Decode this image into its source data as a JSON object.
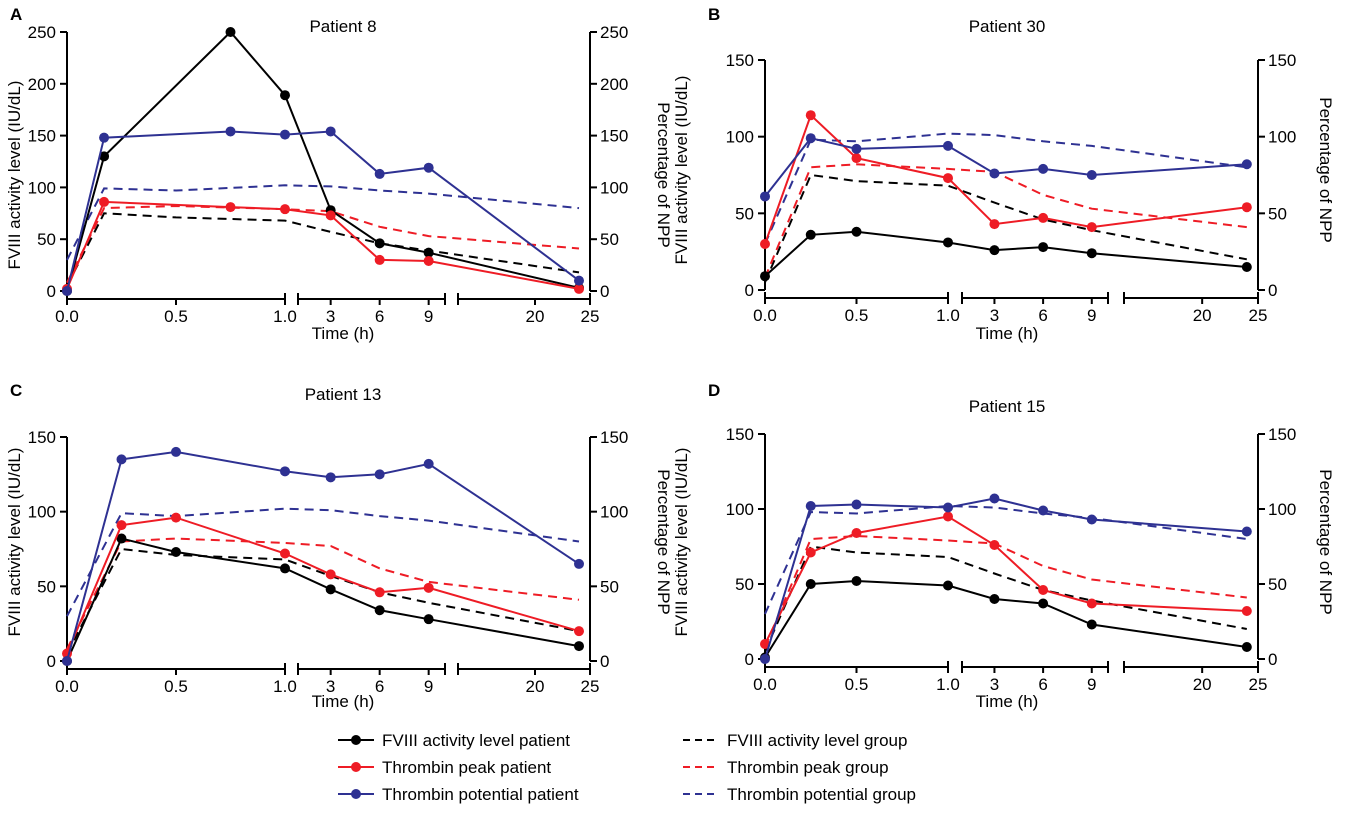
{
  "colors": {
    "fviii": "#000000",
    "peak": "#ee1c25",
    "potential": "#2e3192"
  },
  "chart_data": [
    {
      "type": "line",
      "panel": "A",
      "title": "Patient 8",
      "xlabel": "Time (h)",
      "ylabel_left": "FVIII activity level (IU/dL)",
      "ylabel_right": "Percentage of NPP",
      "ylim": [
        0,
        250
      ],
      "yticks": [
        0,
        50,
        100,
        150,
        200,
        250
      ],
      "x_segments": [
        {
          "domain": [
            0,
            1
          ],
          "ticks": [
            0,
            0.5,
            1
          ],
          "tick_labels": [
            "0.0",
            "0.5",
            "1.0"
          ]
        },
        {
          "domain": [
            1,
            10
          ],
          "ticks": [
            3,
            6,
            9
          ],
          "tick_labels": [
            "3",
            "6",
            "9"
          ]
        },
        {
          "domain": [
            13,
            25
          ],
          "ticks": [
            20,
            25
          ],
          "tick_labels": [
            "20",
            "25"
          ]
        }
      ],
      "series": [
        {
          "name": "FVIII activity level patient",
          "key": "fviii",
          "dash": false,
          "x": [
            0,
            0.17,
            0.75,
            1,
            3,
            6,
            9,
            24
          ],
          "y": [
            0,
            130,
            250,
            189,
            78,
            46,
            37,
            3
          ]
        },
        {
          "name": "Thrombin peak patient",
          "key": "peak",
          "dash": false,
          "x": [
            0,
            0.17,
            0.75,
            1,
            3,
            6,
            9,
            24
          ],
          "y": [
            2,
            86,
            81,
            79,
            73,
            30,
            29,
            2
          ]
        },
        {
          "name": "Thrombin potential patient",
          "key": "potential",
          "dash": false,
          "x": [
            0,
            0.17,
            0.75,
            1,
            3,
            6,
            9,
            24
          ],
          "y": [
            0,
            148,
            154,
            151,
            154,
            113,
            119,
            10
          ]
        },
        {
          "name": "FVIII activity level group",
          "key": "fviii",
          "dash": true,
          "x": [
            0,
            0.17,
            0.5,
            1,
            3,
            6,
            9,
            24
          ],
          "y": [
            5,
            75,
            71,
            68,
            57,
            46,
            39,
            18
          ]
        },
        {
          "name": "Thrombin peak group",
          "key": "peak",
          "dash": true,
          "x": [
            0,
            0.17,
            0.5,
            1,
            3,
            6,
            9,
            24
          ],
          "y": [
            8,
            80,
            82,
            79,
            77,
            62,
            53,
            41
          ]
        },
        {
          "name": "Thrombin potential group",
          "key": "potential",
          "dash": true,
          "x": [
            0,
            0.17,
            0.5,
            1,
            3,
            6,
            9,
            24
          ],
          "y": [
            30,
            99,
            97,
            102,
            101,
            97,
            94,
            80
          ]
        }
      ]
    },
    {
      "type": "line",
      "panel": "B",
      "title": "Patient 30",
      "xlabel": "Time (h)",
      "ylabel_left": "FVIII activity level (IU/dL)",
      "ylabel_right": "Percentage of NPP",
      "ylim": [
        0,
        150
      ],
      "yticks": [
        0,
        50,
        100,
        150
      ],
      "x_segments": [
        {
          "domain": [
            0,
            1
          ],
          "ticks": [
            0,
            0.5,
            1
          ],
          "tick_labels": [
            "0.0",
            "0.5",
            "1.0"
          ]
        },
        {
          "domain": [
            1,
            10
          ],
          "ticks": [
            3,
            6,
            9
          ],
          "tick_labels": [
            "3",
            "6",
            "9"
          ]
        },
        {
          "domain": [
            13,
            25
          ],
          "ticks": [
            20,
            25
          ],
          "tick_labels": [
            "20",
            "25"
          ]
        }
      ],
      "series": [
        {
          "name": "FVIII activity level patient",
          "key": "fviii",
          "dash": false,
          "x": [
            0,
            0.25,
            0.5,
            1,
            3,
            6,
            9,
            24
          ],
          "y": [
            9,
            36,
            38,
            31,
            26,
            28,
            24,
            15
          ]
        },
        {
          "name": "Thrombin peak patient",
          "key": "peak",
          "dash": false,
          "x": [
            0,
            0.25,
            0.5,
            1,
            3,
            6,
            9,
            24
          ],
          "y": [
            30,
            114,
            86,
            73,
            43,
            47,
            41,
            54
          ]
        },
        {
          "name": "Thrombin potential patient",
          "key": "potential",
          "dash": false,
          "x": [
            0,
            0.25,
            0.5,
            1,
            3,
            6,
            9,
            24
          ],
          "y": [
            61,
            99,
            92,
            94,
            76,
            79,
            75,
            82
          ]
        },
        {
          "name": "FVIII activity level group",
          "key": "fviii",
          "dash": true,
          "x": [
            0,
            0.25,
            0.5,
            1,
            3,
            6,
            9,
            24
          ],
          "y": [
            5,
            75,
            71,
            68,
            57,
            46,
            39,
            20
          ]
        },
        {
          "name": "Thrombin peak group",
          "key": "peak",
          "dash": true,
          "x": [
            0,
            0.25,
            0.5,
            1,
            3,
            6,
            9,
            24
          ],
          "y": [
            8,
            80,
            82,
            79,
            77,
            62,
            53,
            41
          ]
        },
        {
          "name": "Thrombin potential group",
          "key": "potential",
          "dash": true,
          "x": [
            0,
            0.25,
            0.5,
            1,
            3,
            6,
            9,
            24
          ],
          "y": [
            30,
            98,
            97,
            102,
            101,
            97,
            94,
            80
          ]
        }
      ]
    },
    {
      "type": "line",
      "panel": "C",
      "title": "Patient 13",
      "xlabel": "Time (h)",
      "ylabel_left": "FVIII activity level (IU/dL)",
      "ylabel_right": "Percentage of NPP",
      "ylim": [
        0,
        150
      ],
      "yticks": [
        0,
        50,
        100,
        150
      ],
      "x_segments": [
        {
          "domain": [
            0,
            1
          ],
          "ticks": [
            0,
            0.5,
            1
          ],
          "tick_labels": [
            "0.0",
            "0.5",
            "1.0"
          ]
        },
        {
          "domain": [
            1,
            10
          ],
          "ticks": [
            3,
            6,
            9
          ],
          "tick_labels": [
            "3",
            "6",
            "9"
          ]
        },
        {
          "domain": [
            13,
            25
          ],
          "ticks": [
            20,
            25
          ],
          "tick_labels": [
            "20",
            "25"
          ]
        }
      ],
      "series": [
        {
          "name": "FVIII activity level patient",
          "key": "fviii",
          "dash": false,
          "x": [
            0,
            0.25,
            0.5,
            1,
            3,
            6,
            9,
            24
          ],
          "y": [
            0,
            82,
            73,
            62,
            48,
            34,
            28,
            10
          ]
        },
        {
          "name": "Thrombin peak patient",
          "key": "peak",
          "dash": false,
          "x": [
            0,
            0.25,
            0.5,
            1,
            3,
            6,
            9,
            24
          ],
          "y": [
            5,
            91,
            96,
            72,
            58,
            46,
            49,
            20
          ]
        },
        {
          "name": "Thrombin potential patient",
          "key": "potential",
          "dash": false,
          "x": [
            0,
            0.25,
            0.5,
            1,
            3,
            6,
            9,
            24
          ],
          "y": [
            0,
            135,
            140,
            127,
            123,
            125,
            132,
            65
          ]
        },
        {
          "name": "FVIII activity level group",
          "key": "fviii",
          "dash": true,
          "x": [
            0,
            0.25,
            0.5,
            1,
            3,
            6,
            9,
            24
          ],
          "y": [
            5,
            75,
            71,
            68,
            57,
            46,
            39,
            20
          ]
        },
        {
          "name": "Thrombin peak group",
          "key": "peak",
          "dash": true,
          "x": [
            0,
            0.25,
            0.5,
            1,
            3,
            6,
            9,
            24
          ],
          "y": [
            8,
            80,
            82,
            79,
            77,
            62,
            53,
            41
          ]
        },
        {
          "name": "Thrombin potential group",
          "key": "potential",
          "dash": true,
          "x": [
            0,
            0.25,
            0.5,
            1,
            3,
            6,
            9,
            24
          ],
          "y": [
            30,
            99,
            97,
            102,
            101,
            97,
            94,
            80
          ]
        }
      ]
    },
    {
      "type": "line",
      "panel": "D",
      "title": "Patient 15",
      "xlabel": "Time (h)",
      "ylabel_left": "FVIII activity level (IU/dL)",
      "ylabel_right": "Percentage of NPP",
      "ylim": [
        0,
        150
      ],
      "yticks": [
        0,
        50,
        100,
        150
      ],
      "x_segments": [
        {
          "domain": [
            0,
            1
          ],
          "ticks": [
            0,
            0.5,
            1
          ],
          "tick_labels": [
            "0.0",
            "0.5",
            "1.0"
          ]
        },
        {
          "domain": [
            1,
            10
          ],
          "ticks": [
            3,
            6,
            9
          ],
          "tick_labels": [
            "3",
            "6",
            "9"
          ]
        },
        {
          "domain": [
            13,
            25
          ],
          "ticks": [
            20,
            25
          ],
          "tick_labels": [
            "20",
            "25"
          ]
        }
      ],
      "series": [
        {
          "name": "FVIII activity level patient",
          "key": "fviii",
          "dash": false,
          "x": [
            0,
            0.25,
            0.5,
            1,
            3,
            6,
            9,
            24
          ],
          "y": [
            1,
            50,
            52,
            49,
            40,
            37,
            23,
            8
          ]
        },
        {
          "name": "Thrombin peak patient",
          "key": "peak",
          "dash": false,
          "x": [
            0,
            0.25,
            0.5,
            1,
            3,
            6,
            9,
            24
          ],
          "y": [
            10,
            71,
            84,
            95,
            76,
            46,
            37,
            32
          ]
        },
        {
          "name": "Thrombin potential patient",
          "key": "potential",
          "dash": false,
          "x": [
            0,
            0.25,
            0.5,
            1,
            3,
            6,
            9,
            24
          ],
          "y": [
            0,
            102,
            103,
            101,
            107,
            99,
            93,
            85
          ]
        },
        {
          "name": "FVIII activity level group",
          "key": "fviii",
          "dash": true,
          "x": [
            0,
            0.25,
            0.5,
            1,
            3,
            6,
            9,
            24
          ],
          "y": [
            5,
            75,
            71,
            68,
            57,
            46,
            39,
            20
          ]
        },
        {
          "name": "Thrombin peak group",
          "key": "peak",
          "dash": true,
          "x": [
            0,
            0.25,
            0.5,
            1,
            3,
            6,
            9,
            24
          ],
          "y": [
            8,
            80,
            82,
            79,
            77,
            62,
            53,
            41
          ]
        },
        {
          "name": "Thrombin potential group",
          "key": "potential",
          "dash": true,
          "x": [
            0,
            0.25,
            0.5,
            1,
            3,
            6,
            9,
            24
          ],
          "y": [
            30,
            98,
            97,
            102,
            101,
            97,
            94,
            80
          ]
        }
      ]
    }
  ],
  "legend": {
    "items": [
      {
        "label": "FVIII activity level patient",
        "key": "fviii",
        "dash": false
      },
      {
        "label": "Thrombin peak patient",
        "key": "peak",
        "dash": false
      },
      {
        "label": "Thrombin potential patient",
        "key": "potential",
        "dash": false
      },
      {
        "label": "FVIII activity level group",
        "key": "fviii",
        "dash": true
      },
      {
        "label": "Thrombin peak group",
        "key": "peak",
        "dash": true
      },
      {
        "label": "Thrombin potential group",
        "key": "potential",
        "dash": true
      }
    ]
  }
}
